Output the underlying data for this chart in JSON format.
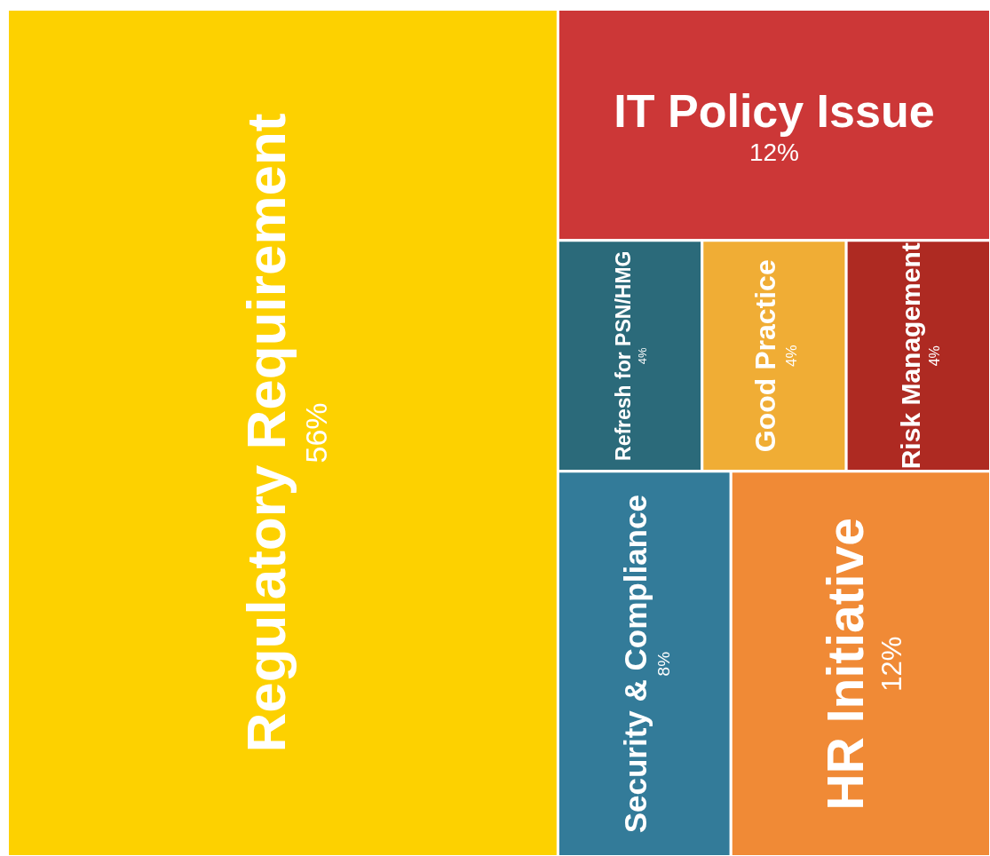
{
  "chart_data": {
    "type": "other",
    "categories": [
      "Regulatory Requirement",
      "IT Policy Issue",
      "Refresh for PSN/HMG",
      "Good Practice",
      "Risk Management",
      "Security & Compliance",
      "HR Initiative"
    ],
    "values": [
      56,
      12,
      4,
      4,
      4,
      8,
      12
    ],
    "value_labels": [
      "56%",
      "12%",
      "4%",
      "4%",
      "4%",
      "8%",
      "12%"
    ],
    "colors": [
      "#fdd100",
      "#cc3737",
      "#2b6a7a",
      "#f0ad35",
      "#ae2a22",
      "#337b99",
      "#f08a36"
    ]
  }
}
